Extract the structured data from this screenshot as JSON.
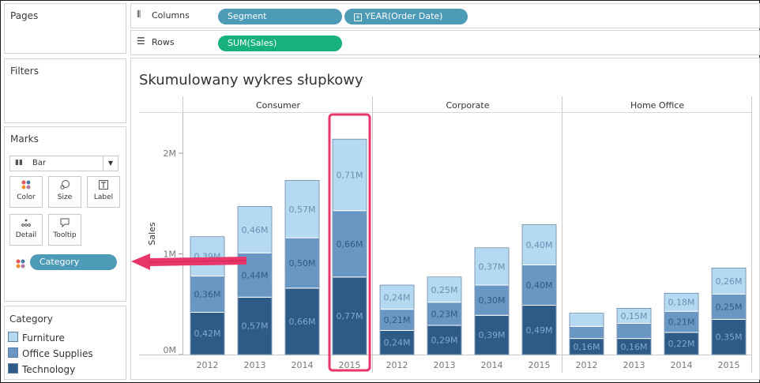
{
  "sidebar": {
    "pages_title": "Pages",
    "filters_title": "Filters",
    "marks": {
      "title": "Marks",
      "mark_type": "Bar",
      "buttons": [
        {
          "label": "Color",
          "icon": "color-dots-icon"
        },
        {
          "label": "Size",
          "icon": "size-icon"
        },
        {
          "label": "Label",
          "icon": "label-icon"
        },
        {
          "label": "Detail",
          "icon": "detail-icon"
        },
        {
          "label": "Tooltip",
          "icon": "tooltip-icon"
        }
      ],
      "color_pill": "Category"
    },
    "legend": {
      "title": "Category",
      "items": [
        {
          "label": "Furniture",
          "color": "#b5d9f0"
        },
        {
          "label": "Office Supplies",
          "color": "#6a96c3"
        },
        {
          "label": "Technology",
          "color": "#2e5a87"
        }
      ]
    }
  },
  "shelves": {
    "columns_label": "Columns",
    "columns_pills": [
      "Segment",
      "YEAR(Order Date)"
    ],
    "rows_label": "Rows",
    "rows_pills": [
      "SUM(Sales)"
    ]
  },
  "colors": {
    "dimension_pill": "#4d9bb7",
    "measure_pill": "#17b17f",
    "highlight": "#e8366a",
    "technology": "#2e5a87",
    "office_supplies": "#6a96c3",
    "furniture": "#b5d9f0"
  },
  "chart_data": {
    "type": "bar",
    "stacked": true,
    "title": "Skumulowany wykres słupkowy",
    "ylabel": "Sales",
    "xlabel": "",
    "ylim": [
      0,
      2400000
    ],
    "yticks": [
      {
        "value": 0,
        "label": "0M"
      },
      {
        "value": 1000000,
        "label": "1M"
      },
      {
        "value": 2000000,
        "label": "2M"
      }
    ],
    "panels": [
      "Consumer",
      "Corporate",
      "Home Office"
    ],
    "categories": [
      "2012",
      "2013",
      "2014",
      "2015"
    ],
    "series": [
      {
        "name": "Technology",
        "color": "#2e5a87",
        "values": [
          [
            420000,
            570000,
            660000,
            770000
          ],
          [
            240000,
            290000,
            390000,
            490000
          ],
          [
            160000,
            160000,
            220000,
            350000
          ]
        ],
        "labels": [
          [
            "0,42M",
            "0,57M",
            "0,66M",
            "0,77M"
          ],
          [
            "0,24M",
            "0,29M",
            "0,39M",
            "0,49M"
          ],
          [
            "0,16M",
            "0,16M",
            "0,22M",
            "0,35M"
          ]
        ]
      },
      {
        "name": "Office Supplies",
        "color": "#6a96c3",
        "values": [
          [
            360000,
            440000,
            500000,
            660000
          ],
          [
            210000,
            230000,
            300000,
            400000
          ],
          [
            120000,
            150000,
            210000,
            250000
          ]
        ],
        "labels": [
          [
            "0,36M",
            "0,44M",
            "0,50M",
            "0,66M"
          ],
          [
            "0,21M",
            "0,23M",
            "0,30M",
            "0,40M"
          ],
          [
            "",
            "",
            "0,21M",
            "0,25M"
          ]
        ]
      },
      {
        "name": "Furniture",
        "color": "#b5d9f0",
        "values": [
          [
            390000,
            460000,
            570000,
            710000
          ],
          [
            240000,
            250000,
            370000,
            400000
          ],
          [
            130000,
            150000,
            180000,
            260000
          ]
        ],
        "labels": [
          [
            "0,39M",
            "0,46M",
            "0,57M",
            "0,71M"
          ],
          [
            "0,24M",
            "0,25M",
            "0,37M",
            "0,40M"
          ],
          [
            "",
            "0,15M",
            "0,18M",
            "0,26M"
          ]
        ]
      }
    ],
    "highlighted": {
      "panel": "Consumer",
      "category": "2015"
    }
  }
}
